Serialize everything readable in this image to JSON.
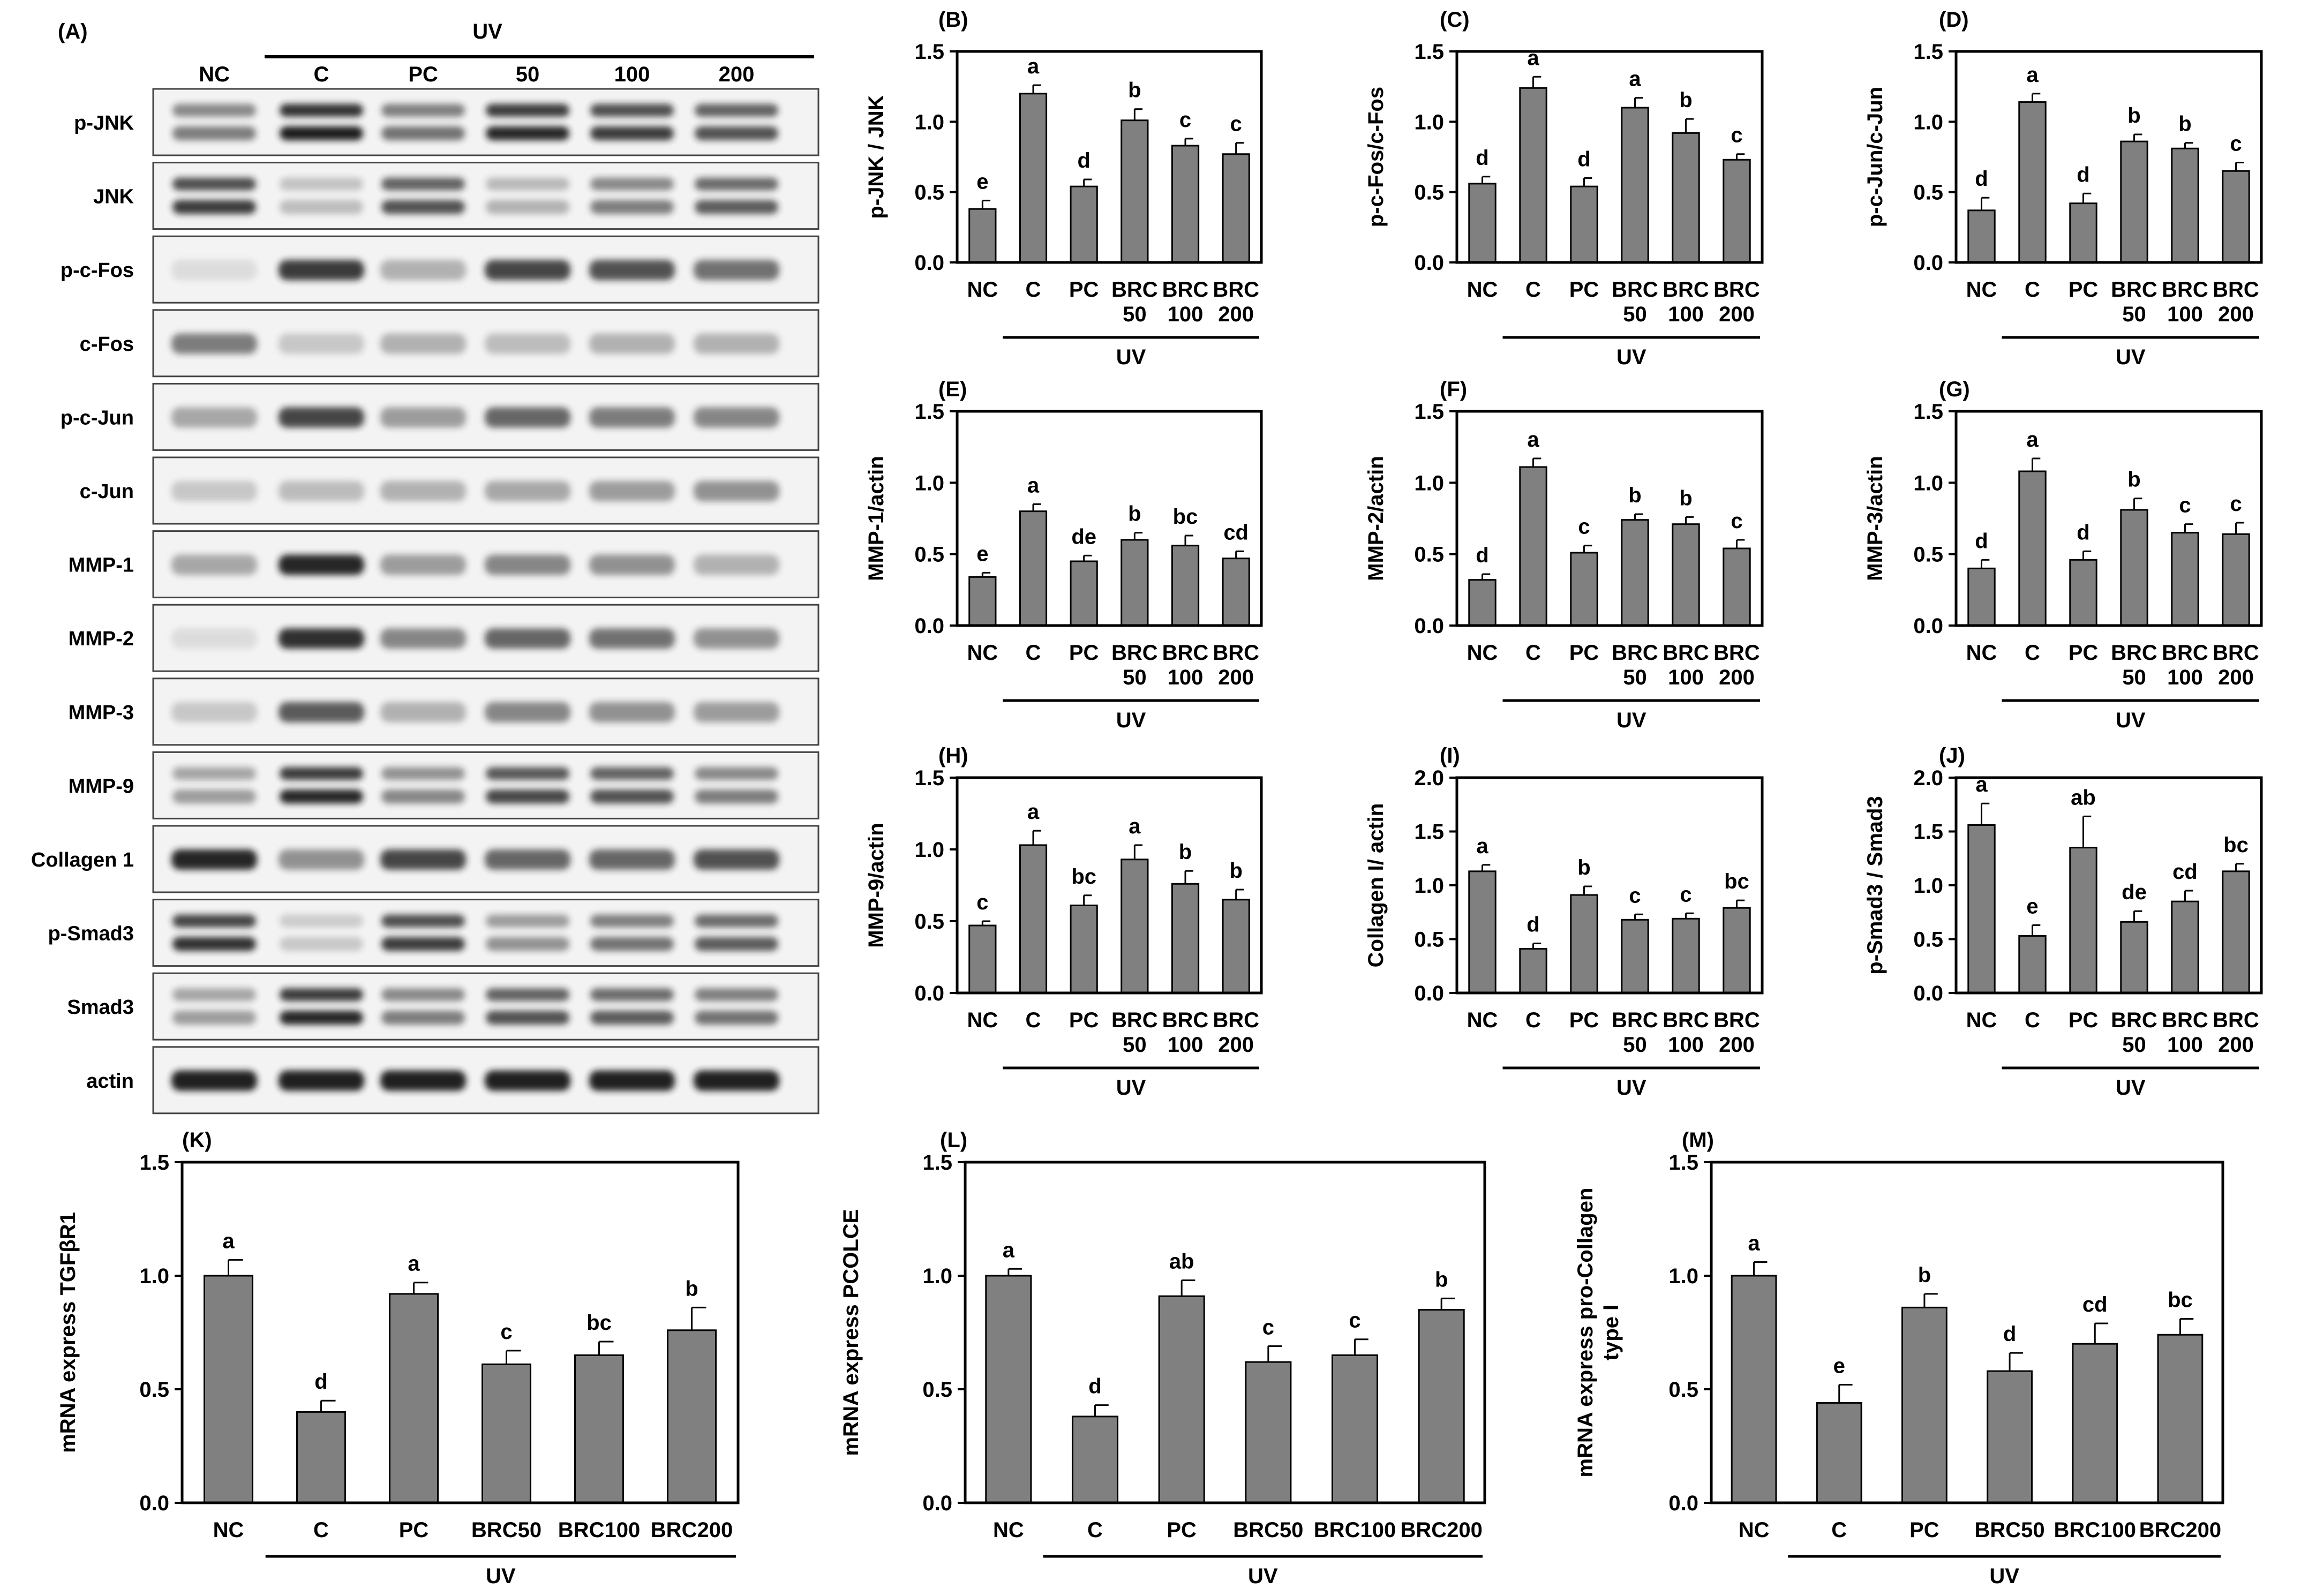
{
  "colors": {
    "bar": "#808080",
    "ink": "#000000",
    "blot_bg": "#f3f3f3",
    "band": "#1a1a1a"
  },
  "western": {
    "panel_label": "(A)",
    "group_label": "UV",
    "lanes": [
      "NC",
      "C",
      "PC",
      "50",
      "100",
      "200"
    ],
    "rows": [
      {
        "name": "p-JNK",
        "intensity": [
          0.55,
          1.0,
          0.6,
          0.95,
          0.85,
          0.75
        ],
        "bands": 2
      },
      {
        "name": "JNK",
        "intensity": [
          0.85,
          0.25,
          0.75,
          0.3,
          0.55,
          0.7
        ],
        "bands": 2
      },
      {
        "name": "p-c-Fos",
        "intensity": [
          0.1,
          0.85,
          0.3,
          0.8,
          0.75,
          0.6
        ],
        "bands": 1
      },
      {
        "name": "c-Fos",
        "intensity": [
          0.55,
          0.2,
          0.3,
          0.25,
          0.3,
          0.3
        ],
        "bands": 1
      },
      {
        "name": "p-c-Jun",
        "intensity": [
          0.35,
          0.8,
          0.4,
          0.65,
          0.55,
          0.5
        ],
        "bands": 1
      },
      {
        "name": "c-Jun",
        "intensity": [
          0.2,
          0.25,
          0.3,
          0.35,
          0.4,
          0.45
        ],
        "bands": 1
      },
      {
        "name": "MMP-1",
        "intensity": [
          0.35,
          0.95,
          0.4,
          0.5,
          0.45,
          0.3
        ],
        "bands": 1
      },
      {
        "name": "MMP-2",
        "intensity": [
          0.1,
          0.9,
          0.5,
          0.65,
          0.6,
          0.45
        ],
        "bands": 1
      },
      {
        "name": "MMP-3",
        "intensity": [
          0.2,
          0.7,
          0.3,
          0.5,
          0.45,
          0.4
        ],
        "bands": 1
      },
      {
        "name": "MMP-9",
        "intensity": [
          0.4,
          0.95,
          0.5,
          0.8,
          0.75,
          0.55
        ],
        "bands": 2
      },
      {
        "name": "Collagen 1",
        "intensity": [
          0.95,
          0.45,
          0.8,
          0.65,
          0.65,
          0.75
        ],
        "bands": 1
      },
      {
        "name": "p-Smad3",
        "intensity": [
          0.9,
          0.2,
          0.85,
          0.45,
          0.6,
          0.7
        ],
        "bands": 2
      },
      {
        "name": "Smad3",
        "intensity": [
          0.4,
          0.95,
          0.55,
          0.75,
          0.7,
          0.6
        ],
        "bands": 2
      },
      {
        "name": "actin",
        "intensity": [
          0.98,
          0.98,
          0.98,
          0.98,
          0.98,
          0.98
        ],
        "bands": 1
      }
    ]
  },
  "chart_data": [
    {
      "panel": "(B)",
      "type": "bar",
      "ylabel": "p-JNK / JNK",
      "ylim": [
        0,
        1.5
      ],
      "yticks": [
        "0.0",
        "0.5",
        "1.0",
        "1.5"
      ],
      "categories": [
        "NC",
        "C",
        "PC",
        "BRC 50",
        "BRC 100",
        "BRC 200"
      ],
      "values": [
        0.38,
        1.2,
        0.54,
        1.01,
        0.83,
        0.77
      ],
      "errors": [
        0.06,
        0.06,
        0.05,
        0.08,
        0.05,
        0.08
      ],
      "letters": [
        "e",
        "a",
        "d",
        "b",
        "c",
        "c"
      ],
      "group_label": "UV"
    },
    {
      "panel": "(C)",
      "type": "bar",
      "ylabel": "p-c-Fos/c-Fos",
      "ylim": [
        0,
        1.5
      ],
      "yticks": [
        "0.0",
        "0.5",
        "1.0",
        "1.5"
      ],
      "categories": [
        "NC",
        "C",
        "PC",
        "BRC 50",
        "BRC 100",
        "BRC 200"
      ],
      "values": [
        0.56,
        1.24,
        0.54,
        1.1,
        0.92,
        0.73
      ],
      "errors": [
        0.05,
        0.08,
        0.06,
        0.07,
        0.1,
        0.04
      ],
      "letters": [
        "d",
        "a",
        "d",
        "a",
        "b",
        "c"
      ],
      "group_label": "UV"
    },
    {
      "panel": "(D)",
      "type": "bar",
      "ylabel": "p-c-Jun/c-Jun",
      "ylim": [
        0,
        1.5
      ],
      "yticks": [
        "0.0",
        "0.5",
        "1.0",
        "1.5"
      ],
      "categories": [
        "NC",
        "C",
        "PC",
        "BRC 50",
        "BRC 100",
        "BRC 200"
      ],
      "values": [
        0.37,
        1.14,
        0.42,
        0.86,
        0.81,
        0.65
      ],
      "errors": [
        0.09,
        0.06,
        0.07,
        0.05,
        0.04,
        0.06
      ],
      "letters": [
        "d",
        "a",
        "d",
        "b",
        "b",
        "c"
      ],
      "group_label": "UV"
    },
    {
      "panel": "(E)",
      "type": "bar",
      "ylabel": "MMP-1/actin",
      "ylim": [
        0,
        1.5
      ],
      "yticks": [
        "0.0",
        "0.5",
        "1.0",
        "1.5"
      ],
      "categories": [
        "NC",
        "C",
        "PC",
        "BRC 50",
        "BRC 100",
        "BRC 200"
      ],
      "values": [
        0.34,
        0.8,
        0.45,
        0.6,
        0.56,
        0.47
      ],
      "errors": [
        0.03,
        0.05,
        0.04,
        0.05,
        0.07,
        0.05
      ],
      "letters": [
        "e",
        "a",
        "de",
        "b",
        "bc",
        "cd"
      ],
      "group_label": "UV"
    },
    {
      "panel": "(F)",
      "type": "bar",
      "ylabel": "MMP-2/actin",
      "ylim": [
        0,
        1.5
      ],
      "yticks": [
        "0.0",
        "0.5",
        "1.0",
        "1.5"
      ],
      "categories": [
        "NC",
        "C",
        "PC",
        "BRC 50",
        "BRC 100",
        "BRC 200"
      ],
      "values": [
        0.32,
        1.11,
        0.51,
        0.74,
        0.71,
        0.54
      ],
      "errors": [
        0.04,
        0.06,
        0.05,
        0.04,
        0.05,
        0.06
      ],
      "letters": [
        "d",
        "a",
        "c",
        "b",
        "b",
        "c"
      ],
      "group_label": "UV"
    },
    {
      "panel": "(G)",
      "type": "bar",
      "ylabel": "MMP-3/actin",
      "ylim": [
        0,
        1.5
      ],
      "yticks": [
        "0.0",
        "0.5",
        "1.0",
        "1.5"
      ],
      "categories": [
        "NC",
        "C",
        "PC",
        "BRC 50",
        "BRC 100",
        "BRC 200"
      ],
      "values": [
        0.4,
        1.08,
        0.46,
        0.81,
        0.65,
        0.64
      ],
      "errors": [
        0.06,
        0.09,
        0.06,
        0.08,
        0.06,
        0.08
      ],
      "letters": [
        "d",
        "a",
        "d",
        "b",
        "c",
        "c"
      ],
      "group_label": "UV"
    },
    {
      "panel": "(H)",
      "type": "bar",
      "ylabel": "MMP-9/actin",
      "ylim": [
        0,
        1.5
      ],
      "yticks": [
        "0.0",
        "0.5",
        "1.0",
        "1.5"
      ],
      "categories": [
        "NC",
        "C",
        "PC",
        "BRC 50",
        "BRC 100",
        "BRC 200"
      ],
      "values": [
        0.47,
        1.03,
        0.61,
        0.93,
        0.76,
        0.65
      ],
      "errors": [
        0.03,
        0.1,
        0.07,
        0.1,
        0.09,
        0.07
      ],
      "letters": [
        "c",
        "a",
        "bc",
        "a",
        "b",
        "b"
      ],
      "group_label": "UV"
    },
    {
      "panel": "(I)",
      "type": "bar",
      "ylabel": "Collagen I/ actin",
      "ylim": [
        0,
        2.0
      ],
      "yticks": [
        "0.0",
        "0.5",
        "1.0",
        "1.5",
        "2.0"
      ],
      "categories": [
        "NC",
        "C",
        "PC",
        "BRC 50",
        "BRC 100",
        "BRC 200"
      ],
      "values": [
        1.13,
        0.41,
        0.91,
        0.68,
        0.69,
        0.79
      ],
      "errors": [
        0.06,
        0.05,
        0.08,
        0.05,
        0.05,
        0.07
      ],
      "letters": [
        "a",
        "d",
        "b",
        "c",
        "c",
        "bc"
      ],
      "group_label": "UV"
    },
    {
      "panel": "(J)",
      "type": "bar",
      "ylabel": "p-Smad3 / Smad3",
      "ylim": [
        0,
        2.0
      ],
      "yticks": [
        "0.0",
        "0.5",
        "1.0",
        "1.5",
        "2.0"
      ],
      "categories": [
        "NC",
        "C",
        "PC",
        "BRC 50",
        "BRC 100",
        "BRC 200"
      ],
      "values": [
        1.56,
        0.53,
        1.35,
        0.66,
        0.85,
        1.13
      ],
      "errors": [
        0.2,
        0.1,
        0.29,
        0.1,
        0.1,
        0.07
      ],
      "letters": [
        "a",
        "e",
        "ab",
        "de",
        "cd",
        "bc"
      ],
      "group_label": "UV"
    },
    {
      "panel": "(K)",
      "type": "bar",
      "ylabel": "mRNA express TGFβR1",
      "ylim": [
        0,
        1.5
      ],
      "yticks": [
        "0.0",
        "0.5",
        "1.0",
        "1.5"
      ],
      "categories": [
        "NC",
        "C",
        "PC",
        "BRC50",
        "BRC100",
        "BRC200"
      ],
      "values": [
        1.0,
        0.4,
        0.92,
        0.61,
        0.65,
        0.76
      ],
      "errors": [
        0.07,
        0.05,
        0.05,
        0.06,
        0.06,
        0.1
      ],
      "letters": [
        "a",
        "d",
        "a",
        "c",
        "bc",
        "b"
      ],
      "group_label": "UV"
    },
    {
      "panel": "(L)",
      "type": "bar",
      "ylabel": "mRNA express PCOLCE",
      "ylim": [
        0,
        1.5
      ],
      "yticks": [
        "0.0",
        "0.5",
        "1.0",
        "1.5"
      ],
      "categories": [
        "NC",
        "C",
        "PC",
        "BRC50",
        "BRC100",
        "BRC200"
      ],
      "values": [
        1.0,
        0.38,
        0.91,
        0.62,
        0.65,
        0.85
      ],
      "errors": [
        0.03,
        0.05,
        0.07,
        0.07,
        0.07,
        0.05
      ],
      "letters": [
        "a",
        "d",
        "ab",
        "c",
        "c",
        "b"
      ],
      "group_label": "UV"
    },
    {
      "panel": "(M)",
      "type": "bar",
      "ylabel": "mRNA express pro-Collagen type I",
      "ylim": [
        0,
        1.5
      ],
      "yticks": [
        "0.0",
        "0.5",
        "1.0",
        "1.5"
      ],
      "categories": [
        "NC",
        "C",
        "PC",
        "BRC50",
        "BRC100",
        "BRC200"
      ],
      "values": [
        1.0,
        0.44,
        0.86,
        0.58,
        0.7,
        0.74
      ],
      "errors": [
        0.06,
        0.08,
        0.06,
        0.08,
        0.09,
        0.07
      ],
      "letters": [
        "a",
        "e",
        "b",
        "d",
        "cd",
        "bc"
      ],
      "group_label": "UV"
    }
  ]
}
